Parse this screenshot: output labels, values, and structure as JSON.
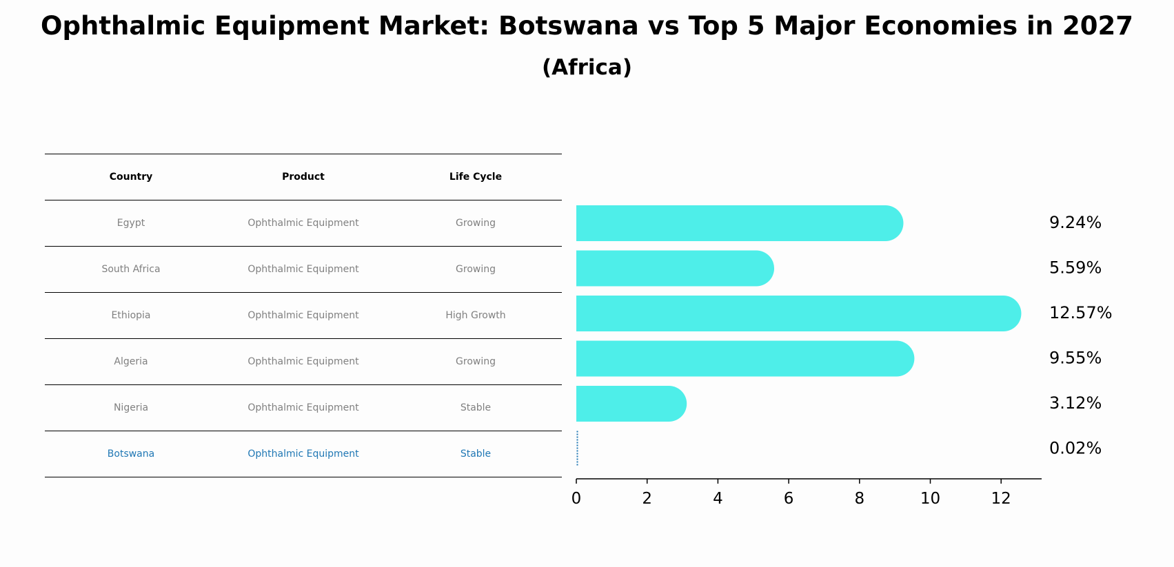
{
  "title": "Ophthalmic Equipment Market: Botswana vs Top 5 Major Economies in 2027",
  "subtitle": "(Africa)",
  "table": {
    "headers": [
      "Country",
      "Product",
      "Life Cycle"
    ],
    "rows": [
      [
        "Egypt",
        "Ophthalmic Equipment",
        "Growing"
      ],
      [
        "South Africa",
        "Ophthalmic Equipment",
        "Growing"
      ],
      [
        "Ethiopia",
        "Ophthalmic Equipment",
        "High Growth"
      ],
      [
        "Algeria",
        "Ophthalmic Equipment",
        "Growing"
      ],
      [
        "Nigeria",
        "Ophthalmic Equipment",
        "Stable"
      ],
      [
        "Botswana",
        "Ophthalmic Equipment",
        "Stable"
      ]
    ]
  },
  "chart_data": {
    "type": "bar",
    "orientation": "horizontal",
    "categories": [
      "Egypt",
      "South Africa",
      "Ethiopia",
      "Algeria",
      "Nigeria",
      "Botswana"
    ],
    "values": [
      9.24,
      5.59,
      12.57,
      9.55,
      3.12,
      0.02
    ],
    "value_labels": [
      "9.24%",
      "5.59%",
      "12.57%",
      "9.55%",
      "3.12%",
      "0.02%"
    ],
    "xticks": [
      "0",
      "2",
      "4",
      "6",
      "8",
      "10",
      "12"
    ],
    "xlim": [
      0,
      13.2
    ],
    "xlabel": "",
    "ylabel": "",
    "grid": false,
    "bar_color": "#4eeee9",
    "highlight_color": "#1f77b4",
    "highlight_category": "Botswana"
  }
}
